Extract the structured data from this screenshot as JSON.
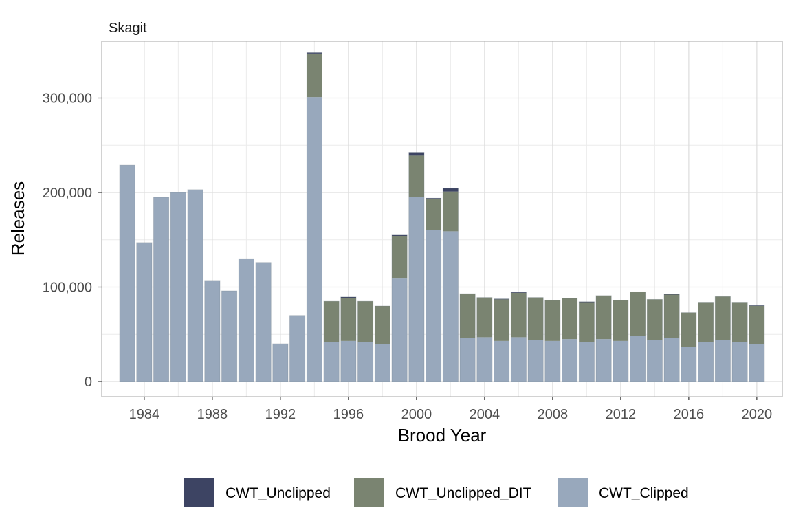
{
  "chart_data": {
    "type": "bar",
    "stacked": true,
    "panel_title": "Skagit",
    "xlabel": "Brood Year",
    "ylabel": "Releases",
    "x": [
      1983,
      1984,
      1985,
      1986,
      1987,
      1988,
      1989,
      1990,
      1991,
      1992,
      1993,
      1994,
      1995,
      1996,
      1997,
      1998,
      1999,
      2000,
      2001,
      2002,
      2003,
      2004,
      2005,
      2006,
      2007,
      2008,
      2009,
      2010,
      2011,
      2012,
      2013,
      2014,
      2015,
      2016,
      2017,
      2018,
      2019,
      2020
    ],
    "xlim": [
      1981.5,
      2021.5
    ],
    "ylim": [
      -16000,
      360000
    ],
    "x_ticks": [
      1984,
      1988,
      1992,
      1996,
      2000,
      2004,
      2008,
      2012,
      2016,
      2020
    ],
    "x_tick_labels": [
      "1984",
      "1988",
      "1992",
      "1996",
      "2000",
      "2004",
      "2008",
      "2012",
      "2016",
      "2020"
    ],
    "y_ticks": [
      0,
      100000,
      200000,
      300000
    ],
    "y_tick_labels": [
      "0",
      "100,000",
      "200,000",
      "300,000"
    ],
    "grid": true,
    "legend_position": "bottom",
    "series": [
      {
        "name": "CWT_Clipped",
        "color": "#98a8bc",
        "values": [
          229000,
          147000,
          195000,
          200000,
          203000,
          107000,
          96000,
          130000,
          126000,
          40000,
          70000,
          301000,
          42000,
          43000,
          42000,
          40000,
          109000,
          195000,
          160000,
          159000,
          46000,
          47000,
          43000,
          47000,
          44000,
          43000,
          45000,
          42000,
          45000,
          43000,
          48000,
          44000,
          46000,
          37000,
          42000,
          44000,
          42000,
          40000
        ]
      },
      {
        "name": "CWT_Unclipped_DIT",
        "color": "#7a8471",
        "values": [
          0,
          0,
          0,
          0,
          0,
          0,
          0,
          0,
          0,
          0,
          0,
          46000,
          43000,
          45000,
          43000,
          40000,
          45000,
          44000,
          33000,
          42000,
          47000,
          42000,
          44000,
          47000,
          45000,
          43000,
          43000,
          42000,
          46000,
          43000,
          47000,
          43000,
          46000,
          36000,
          42000,
          46000,
          42000,
          40000
        ]
      },
      {
        "name": "CWT_Unclipped",
        "color": "#3d4463",
        "values": [
          0,
          0,
          0,
          0,
          0,
          0,
          0,
          0,
          0,
          0,
          0,
          1000,
          0,
          1500,
          0,
          0,
          1000,
          3500,
          1000,
          3500,
          0,
          0,
          500,
          1000,
          0,
          0,
          0,
          500,
          0,
          0,
          0,
          0,
          500,
          0,
          0,
          0,
          0,
          500
        ]
      }
    ],
    "legend_order": [
      "CWT_Unclipped",
      "CWT_Unclipped_DIT",
      "CWT_Clipped"
    ]
  }
}
